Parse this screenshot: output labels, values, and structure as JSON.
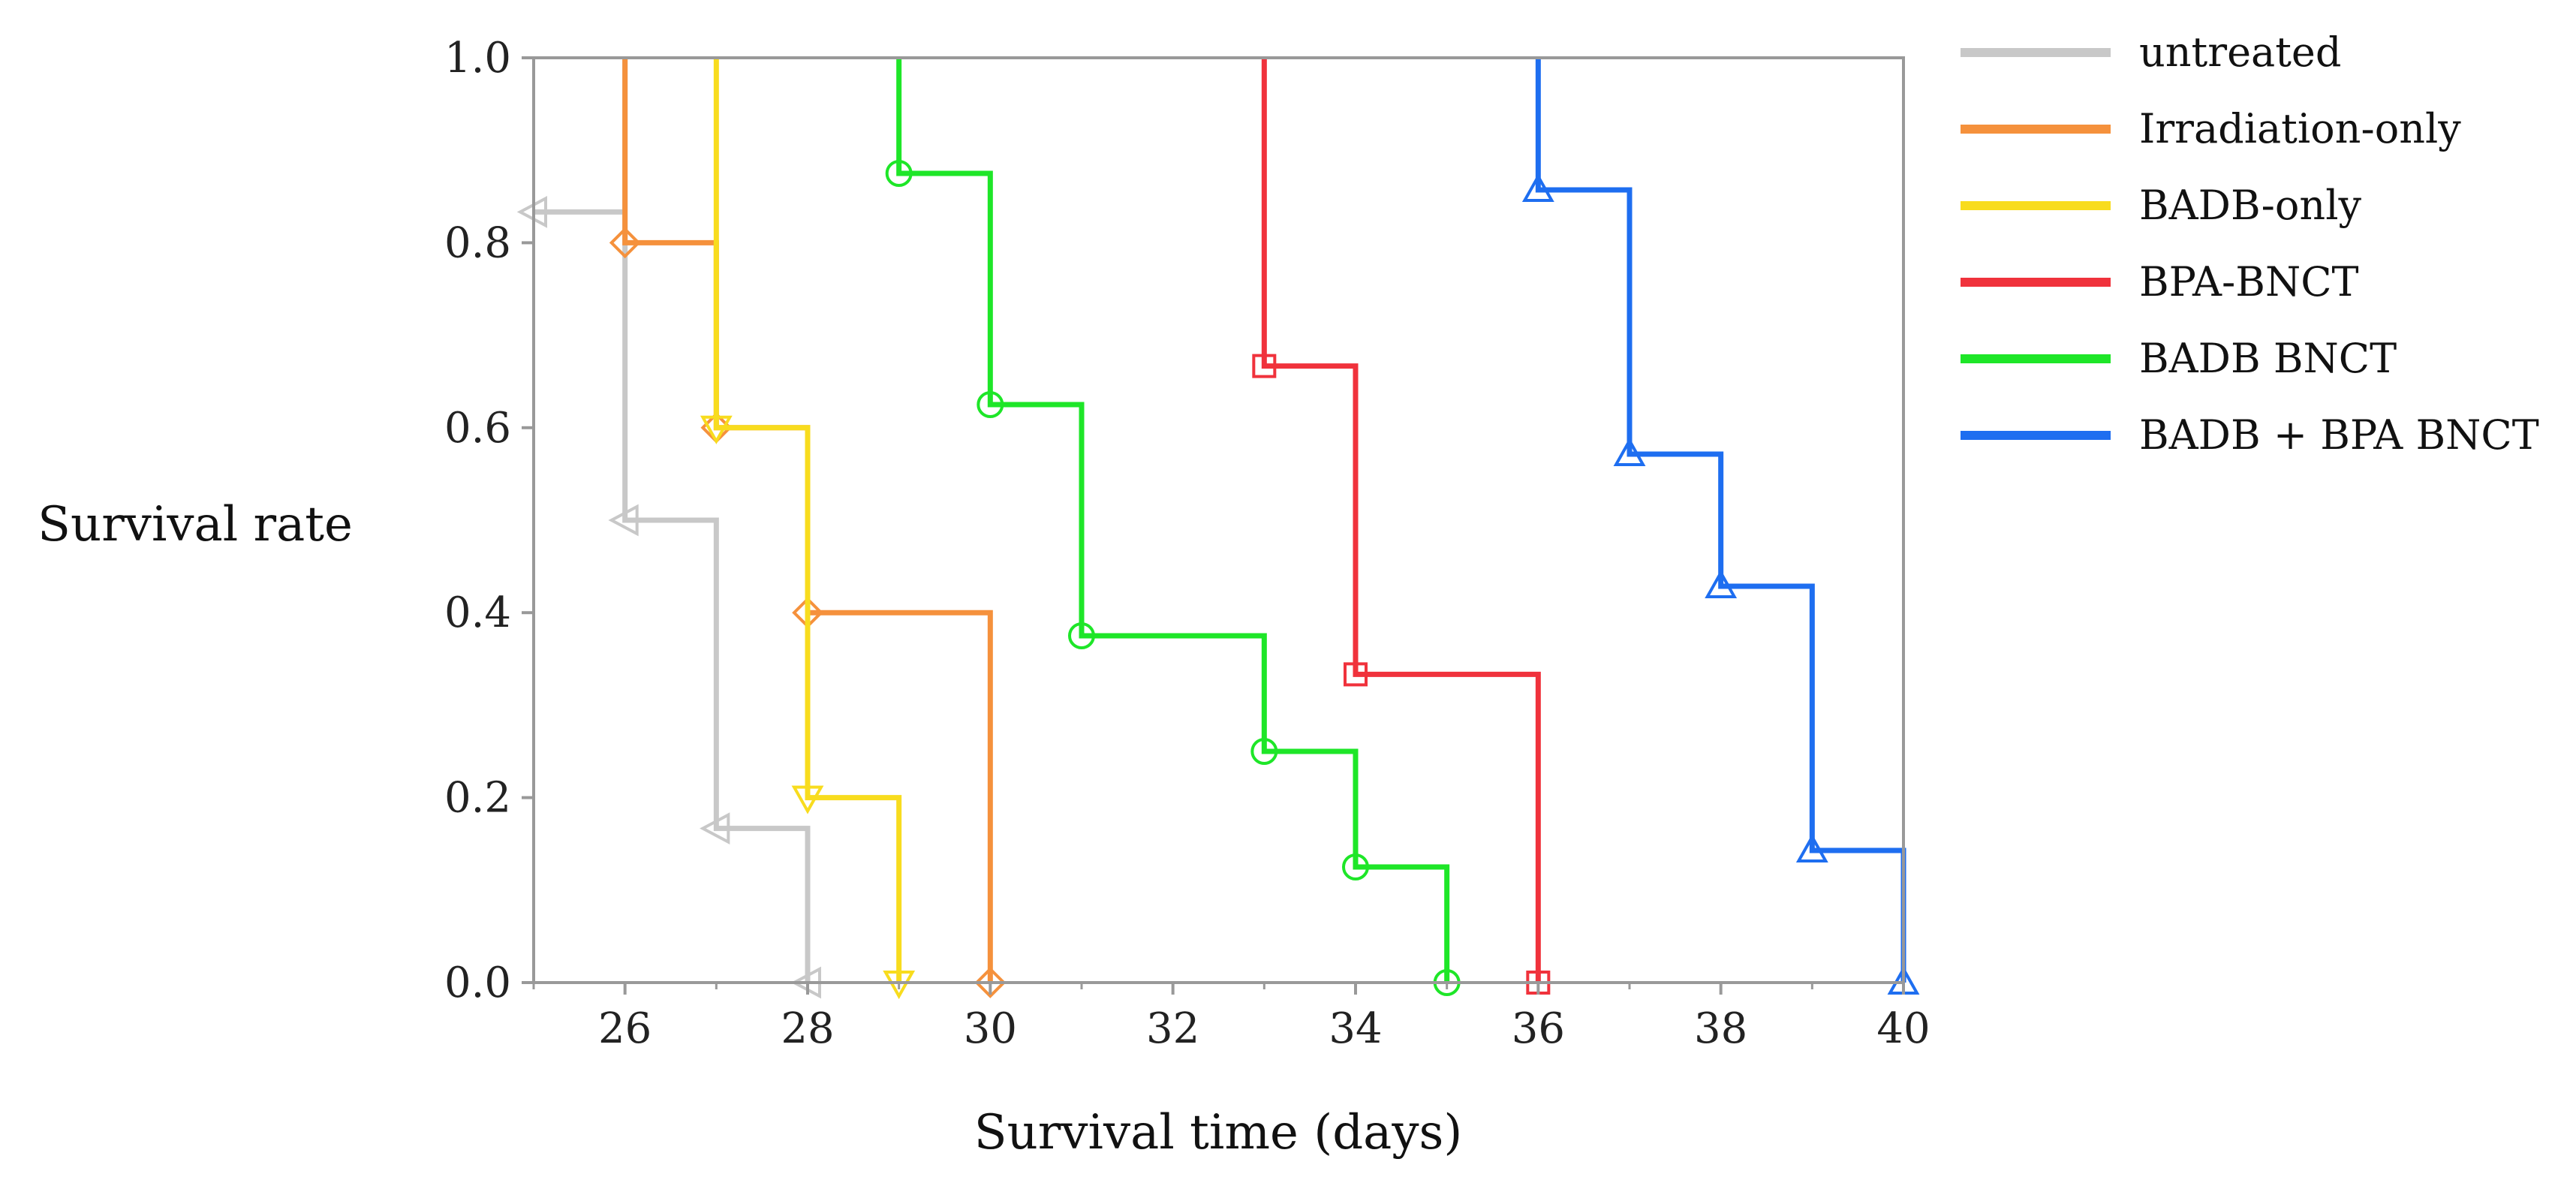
{
  "chart_data": {
    "type": "line",
    "subtype": "kaplan-meier step curve",
    "title": "",
    "xlabel": "Survival time (days)",
    "ylabel": "Survival rate",
    "xlim": [
      25,
      40
    ],
    "ylim": [
      0,
      1
    ],
    "xticks": [
      26,
      28,
      30,
      32,
      34,
      36,
      38,
      40
    ],
    "xtick_labels": [
      "26",
      "28",
      "30",
      "32",
      "34",
      "36",
      "38",
      "40"
    ],
    "yticks": [
      0,
      0.2,
      0.4,
      0.6,
      0.8,
      1.0
    ],
    "ytick_labels": [
      "0.0",
      "0.2",
      "0.4",
      "0.6",
      "0.8",
      "1.0"
    ],
    "grid": false,
    "legend_position": "right",
    "series": [
      {
        "name": "untreated",
        "color": "#c8c8c8",
        "marker": "triangle-left",
        "x": [
          26,
          27,
          28
        ],
        "y": [
          0.5,
          0.1667,
          0.0
        ],
        "marks": [
          [
            25,
            0.8333
          ],
          [
            26,
            0.5
          ],
          [
            27,
            0.1667
          ],
          [
            28,
            0.0
          ]
        ]
      },
      {
        "name": "Irradiation-only",
        "color": "#f5913c",
        "marker": "diamond",
        "x": [
          26,
          27,
          28,
          30
        ],
        "y": [
          0.8,
          0.6,
          0.4,
          0.0
        ],
        "marks": [
          [
            26,
            0.8
          ],
          [
            27,
            0.6
          ],
          [
            28,
            0.4
          ],
          [
            30,
            0.0
          ]
        ]
      },
      {
        "name": "BADB-only",
        "color": "#f8dc1e",
        "marker": "triangle-down",
        "x": [
          27,
          28,
          29
        ],
        "y": [
          0.6,
          0.2,
          0.0
        ],
        "marks": [
          [
            27,
            0.6
          ],
          [
            28,
            0.2
          ],
          [
            29,
            0.0
          ]
        ]
      },
      {
        "name": "BPA-BNCT",
        "color": "#f0323c",
        "marker": "square",
        "x": [
          33,
          34,
          36
        ],
        "y": [
          0.6667,
          0.3333,
          0.0
        ],
        "marks": [
          [
            33,
            0.6667
          ],
          [
            34,
            0.3333
          ],
          [
            36,
            0.0
          ]
        ]
      },
      {
        "name": "BADB BNCT",
        "color": "#1ee628",
        "marker": "circle",
        "x": [
          29,
          30,
          31,
          33,
          34,
          35
        ],
        "y": [
          0.875,
          0.625,
          0.375,
          0.25,
          0.125,
          0.0
        ],
        "marks": [
          [
            29,
            0.875
          ],
          [
            30,
            0.625
          ],
          [
            31,
            0.375
          ],
          [
            33,
            0.25
          ],
          [
            34,
            0.125
          ],
          [
            35,
            0.0
          ]
        ]
      },
      {
        "name": "BADB + BPA BNCT",
        "color": "#1e6ef0",
        "marker": "triangle-up",
        "x": [
          36,
          37,
          38,
          39,
          40
        ],
        "y": [
          0.8571,
          0.5714,
          0.4286,
          0.1429,
          0.0
        ],
        "marks": [
          [
            36,
            0.8571
          ],
          [
            37,
            0.5714
          ],
          [
            38,
            0.4286
          ],
          [
            39,
            0.1429
          ],
          [
            40,
            0.0
          ]
        ]
      }
    ]
  }
}
